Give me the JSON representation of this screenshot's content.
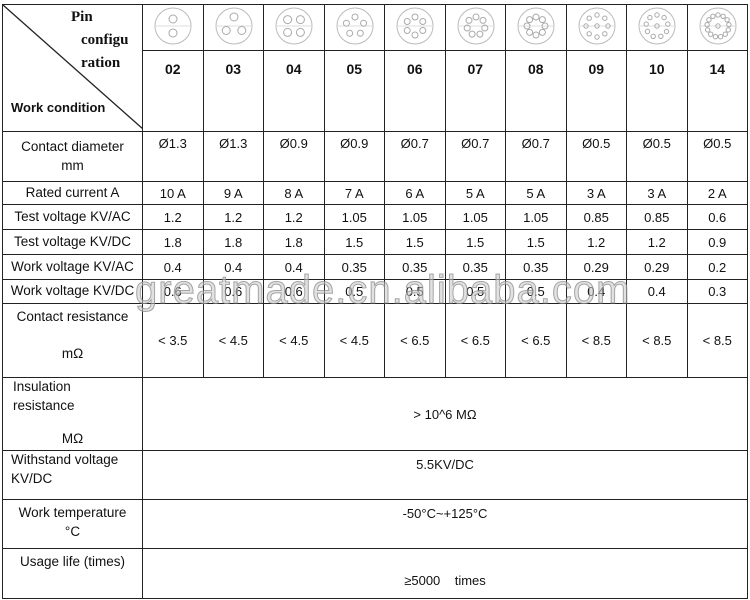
{
  "header": {
    "pin_label_lines": [
      "Pin",
      "configu",
      "ration"
    ],
    "work_condition": "Work condition",
    "pins": [
      "02",
      "03",
      "04",
      "05",
      "06",
      "07",
      "08",
      "09",
      "10",
      "14"
    ],
    "pin_counts": [
      2,
      3,
      4,
      5,
      6,
      7,
      8,
      9,
      10,
      14
    ]
  },
  "rows": [
    {
      "label": [
        "Contact diameter",
        "mm"
      ],
      "values": [
        "Ø1.3",
        "Ø1.3",
        "Ø0.9",
        "Ø0.9",
        "Ø0.7",
        "Ø0.7",
        "Ø0.7",
        "Ø0.5",
        "Ø0.5",
        "Ø0.5"
      ]
    },
    {
      "label": [
        "Rated current A"
      ],
      "values": [
        "10 A",
        "9 A",
        "8 A",
        "7 A",
        "6 A",
        "5 A",
        "5 A",
        "3 A",
        "3 A",
        "2 A"
      ]
    },
    {
      "label": [
        "Test voltage KV/AC"
      ],
      "values": [
        "1.2",
        "1.2",
        "1.2",
        "1.05",
        "1.05",
        "1.05",
        "1.05",
        "0.85",
        "0.85",
        "0.6"
      ]
    },
    {
      "label": [
        "Test voltage KV/DC"
      ],
      "values": [
        "1.8",
        "1.8",
        "1.8",
        "1.5",
        "1.5",
        "1.5",
        "1.5",
        "1.2",
        "1.2",
        "0.9"
      ]
    },
    {
      "label": [
        "Work voltage KV/AC"
      ],
      "values": [
        "0.4",
        "0.4",
        "0.4",
        "0.35",
        "0.35",
        "0.35",
        "0.35",
        "0.29",
        "0.29",
        "0.2"
      ]
    },
    {
      "label": [
        "Work voltage KV/DC"
      ],
      "values": [
        "0.6",
        "0.6",
        "0.6",
        "0.5",
        "0.5",
        "0.5",
        "0.5",
        "0.4",
        "0.4",
        "0.3"
      ]
    },
    {
      "label": [
        "Contact resistance",
        "mΩ"
      ],
      "values": [
        "< 3.5",
        "< 4.5",
        "< 4.5",
        "< 4.5",
        "< 6.5",
        "< 6.5",
        "< 6.5",
        "< 8.5",
        "< 8.5",
        "< 8.5"
      ]
    }
  ],
  "spans": [
    {
      "label": [
        "Insulation resistance",
        "MΩ"
      ],
      "value": "> 10^6 MΩ"
    },
    {
      "label": [
        "Withstand voltage",
        "KV/DC"
      ],
      "value": "5.5KV/DC"
    },
    {
      "label": [
        "Work temperature",
        "°C"
      ],
      "value": "-50°C~+125°C"
    },
    {
      "label": [
        "Usage life (times)"
      ],
      "value": "≥5000    times"
    }
  ],
  "watermark": "greatmade.cn.alibaba.com"
}
